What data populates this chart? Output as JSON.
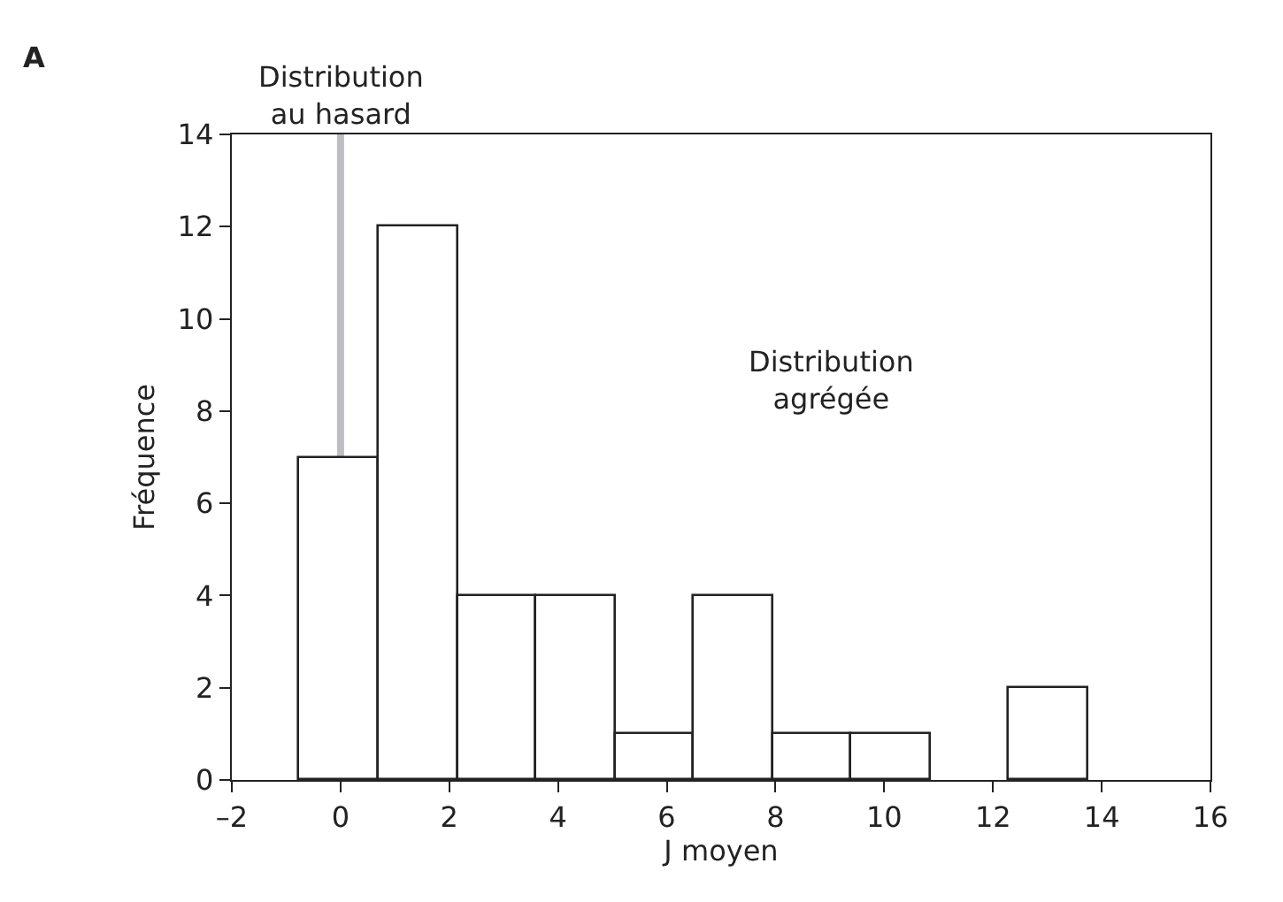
{
  "chart_data": {
    "type": "histogram",
    "xlabel": "J moyen",
    "ylabel": "Fréquence",
    "bins": [
      -0.75,
      0.7,
      2.15,
      3.6,
      5.05,
      6.5,
      7.95,
      9.4,
      10.85,
      12.3,
      13.75
    ],
    "values": [
      7,
      12,
      4,
      4,
      1,
      4,
      1,
      1,
      0,
      2
    ],
    "color": "#ffffff",
    "xlim": [
      -2,
      16
    ],
    "xticks": [
      {
        "value": -2,
        "label": "–2"
      },
      0,
      2,
      4,
      6,
      8,
      10,
      12,
      14,
      16
    ],
    "ylim": [
      0,
      14
    ],
    "yticks": [
      0,
      2,
      4,
      6,
      8,
      10,
      12,
      14
    ],
    "ref_lines": [
      {
        "axis": "x",
        "value": 0,
        "label": "Distribution\nau hasard",
        "color": "#bdbdc2"
      }
    ],
    "annotations": [
      "A",
      "Distribution\nagrégée"
    ],
    "grid": false
  }
}
